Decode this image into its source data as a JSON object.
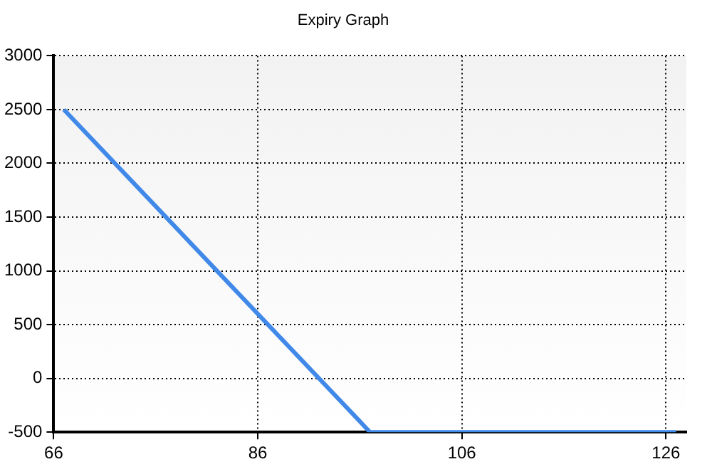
{
  "chart_data": {
    "type": "line",
    "title": "Expiry Graph",
    "x": [
      67,
      97,
      127
    ],
    "series": [
      {
        "color": "#4189e8",
        "values": [
          2500,
          -500,
          -500
        ]
      }
    ],
    "xlim": [
      66,
      128
    ],
    "xticks": [
      66,
      86,
      106,
      126
    ],
    "ylim": [
      -500,
      3000
    ],
    "yticks": [
      -500,
      0,
      500,
      1000,
      1500,
      2000,
      2500,
      3000
    ],
    "grid": true,
    "legend": false,
    "marker": "none",
    "line_style": "solid"
  }
}
